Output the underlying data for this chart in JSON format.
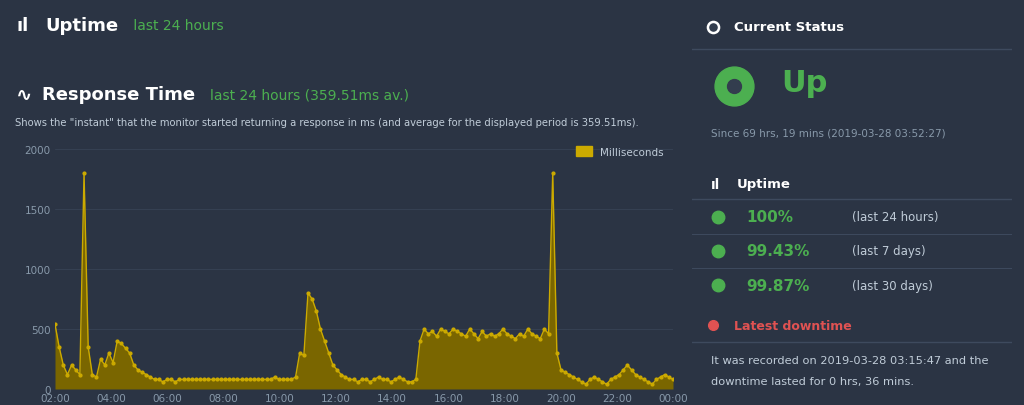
{
  "bg_color": "#2b3444",
  "panel_color": "#333d4e",
  "border_color": "#3e4a5e",
  "green_color": "#4caf50",
  "yellow_color": "#ccaa00",
  "yellow_fill": "#7a6600",
  "red_color": "#e05252",
  "white_color": "#ffffff",
  "gray_text": "#8899aa",
  "light_text": "#c0ccd8",
  "green_bar": "#3fa84a",
  "uptime_title": "Uptime",
  "uptime_subtitle": " last 24 hours",
  "response_subtitle": "last 24 hours (359.51ms av.)",
  "response_desc": "Shows the \"instant\" that the monitor started returning a response in ms (and average for the displayed period is 359.51ms).",
  "legend_label": "Milliseconds",
  "x_labels": [
    "02:00",
    "04:00",
    "06:00",
    "08:00",
    "10:00",
    "12:00",
    "14:00",
    "16:00",
    "18:00",
    "20:00",
    "22:00",
    "00:00"
  ],
  "y_ticks": [
    0,
    500,
    1000,
    1500,
    2000
  ],
  "y_max": 2100,
  "response_values": [
    540,
    350,
    200,
    120,
    200,
    160,
    120,
    1800,
    350,
    120,
    100,
    250,
    200,
    300,
    220,
    400,
    380,
    340,
    300,
    200,
    160,
    140,
    120,
    100,
    80,
    80,
    60,
    80,
    80,
    60,
    80,
    80,
    80,
    80,
    80,
    80,
    80,
    80,
    80,
    80,
    80,
    80,
    80,
    80,
    80,
    80,
    80,
    80,
    80,
    80,
    80,
    80,
    80,
    100,
    80,
    80,
    80,
    80,
    100,
    300,
    280,
    800,
    750,
    650,
    500,
    400,
    300,
    200,
    160,
    120,
    100,
    80,
    80,
    60,
    80,
    80,
    60,
    80,
    100,
    80,
    80,
    60,
    80,
    100,
    80,
    60,
    60,
    80,
    400,
    500,
    460,
    480,
    440,
    500,
    480,
    460,
    500,
    480,
    460,
    440,
    500,
    460,
    420,
    480,
    440,
    460,
    440,
    460,
    500,
    460,
    440,
    420,
    460,
    440,
    500,
    460,
    440,
    420,
    500,
    460,
    1800,
    300,
    160,
    140,
    120,
    100,
    80,
    60,
    40,
    80,
    100,
    80,
    60,
    40,
    80,
    100,
    120,
    160,
    200,
    160,
    120,
    100,
    80,
    60,
    40,
    80,
    100,
    120,
    100,
    80
  ],
  "current_status_title": "Current Status",
  "status_text": "Up",
  "status_since": "Since 69 hrs, 19 mins (2019-03-28 03:52:27)",
  "uptime_panel_title": "Uptime",
  "uptime_stats": [
    {
      "value": "100%",
      "label": "last 24 hours"
    },
    {
      "value": "99.43%",
      "label": "last 7 days"
    },
    {
      "value": "99.87%",
      "label": "last 30 days"
    }
  ],
  "downtime_title": "Latest downtime",
  "downtime_line1": "It was recorded on 2019-03-28 03:15:47 and the",
  "downtime_line2": "downtime lasted for 0 hrs, 36 mins."
}
